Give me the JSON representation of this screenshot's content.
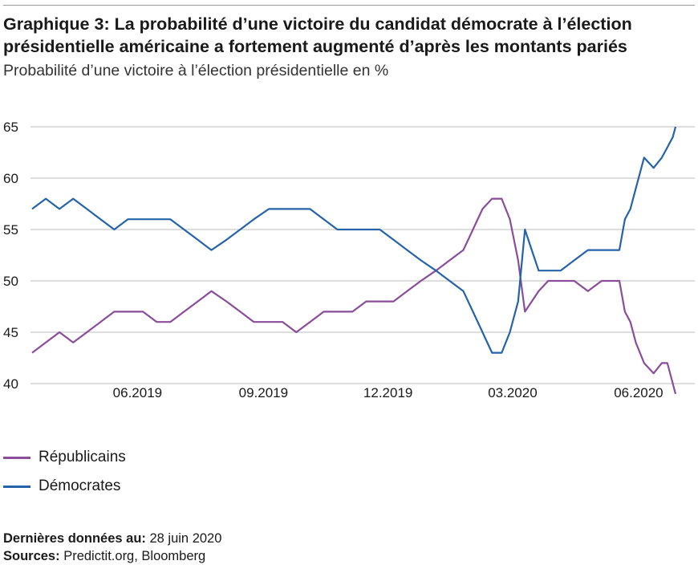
{
  "title": "Graphique 3: La probabilité d’une victoire du candidat démocrate à l’élection présidentielle américaine a fortement augmenté d’après les montants pariés",
  "subtitle": "Probabilité d’une victoire à l’élection présidentielle en %",
  "legend": {
    "republicans": "Républicains",
    "democrats": "Démocrates"
  },
  "footer": {
    "last_data_label": "Dernières données au:",
    "last_data_value": "28 juin 2020",
    "sources_label": "Sources:",
    "sources_value": "Predictit.org, Bloomberg"
  },
  "chart_data": {
    "type": "line",
    "title": "Graphique 3: La probabilité d’une victoire du candidat démocrate à l’élection présidentielle américaine a fortement augmenté d’après les montants pariés",
    "ylabel": "Probabilité d’une victoire à l’élection présidentielle en %",
    "ylim": [
      40,
      65
    ],
    "yticks": [
      40,
      45,
      50,
      55,
      60,
      65
    ],
    "xlim": [
      "2019-03-16",
      "2020-06-28"
    ],
    "xticks": [
      {
        "date": "2019-06-01",
        "label": "06.2019"
      },
      {
        "date": "2019-09-01",
        "label": "09.2019"
      },
      {
        "date": "2019-12-01",
        "label": "12.2019"
      },
      {
        "date": "2020-03-01",
        "label": "03.2020"
      },
      {
        "date": "2020-06-01",
        "label": "06.2020"
      }
    ],
    "grid": true,
    "legend_position": "bottom-left",
    "series": [
      {
        "name": "Républicains",
        "color": "#8a4d9a",
        "points": [
          [
            "2019-03-16",
            43
          ],
          [
            "2019-03-26",
            44
          ],
          [
            "2019-04-05",
            45
          ],
          [
            "2019-04-15",
            44
          ],
          [
            "2019-04-25",
            45
          ],
          [
            "2019-05-05",
            46
          ],
          [
            "2019-05-15",
            47
          ],
          [
            "2019-05-25",
            47
          ],
          [
            "2019-06-05",
            47
          ],
          [
            "2019-06-15",
            46
          ],
          [
            "2019-06-25",
            46
          ],
          [
            "2019-07-05",
            47
          ],
          [
            "2019-07-15",
            48
          ],
          [
            "2019-07-25",
            49
          ],
          [
            "2019-08-05",
            48
          ],
          [
            "2019-08-15",
            47
          ],
          [
            "2019-08-25",
            46
          ],
          [
            "2019-09-05",
            46
          ],
          [
            "2019-09-15",
            46
          ],
          [
            "2019-09-25",
            45
          ],
          [
            "2019-10-05",
            46
          ],
          [
            "2019-10-15",
            47
          ],
          [
            "2019-10-25",
            47
          ],
          [
            "2019-11-05",
            47
          ],
          [
            "2019-11-15",
            48
          ],
          [
            "2019-11-25",
            48
          ],
          [
            "2019-12-05",
            48
          ],
          [
            "2019-12-15",
            49
          ],
          [
            "2019-12-25",
            50
          ],
          [
            "2020-01-05",
            51
          ],
          [
            "2020-01-15",
            52
          ],
          [
            "2020-01-25",
            53
          ],
          [
            "2020-02-01",
            55
          ],
          [
            "2020-02-08",
            57
          ],
          [
            "2020-02-15",
            58
          ],
          [
            "2020-02-22",
            58
          ],
          [
            "2020-02-28",
            56
          ],
          [
            "2020-03-05",
            52
          ],
          [
            "2020-03-10",
            47
          ],
          [
            "2020-03-15",
            48
          ],
          [
            "2020-03-20",
            49
          ],
          [
            "2020-03-27",
            50
          ],
          [
            "2020-04-05",
            50
          ],
          [
            "2020-04-15",
            50
          ],
          [
            "2020-04-25",
            49
          ],
          [
            "2020-05-05",
            50
          ],
          [
            "2020-05-12",
            50
          ],
          [
            "2020-05-18",
            50
          ],
          [
            "2020-05-22",
            47
          ],
          [
            "2020-05-26",
            46
          ],
          [
            "2020-05-30",
            44
          ],
          [
            "2020-06-05",
            42
          ],
          [
            "2020-06-12",
            41
          ],
          [
            "2020-06-18",
            42
          ],
          [
            "2020-06-22",
            42
          ],
          [
            "2020-06-26",
            40
          ],
          [
            "2020-06-28",
            39
          ]
        ]
      },
      {
        "name": "Démocrates",
        "color": "#2563a8",
        "points": [
          [
            "2019-03-16",
            57
          ],
          [
            "2019-03-26",
            58
          ],
          [
            "2019-04-05",
            57
          ],
          [
            "2019-04-15",
            58
          ],
          [
            "2019-04-25",
            57
          ],
          [
            "2019-05-05",
            56
          ],
          [
            "2019-05-15",
            55
          ],
          [
            "2019-05-25",
            56
          ],
          [
            "2019-06-05",
            56
          ],
          [
            "2019-06-15",
            56
          ],
          [
            "2019-06-25",
            56
          ],
          [
            "2019-07-05",
            55
          ],
          [
            "2019-07-15",
            54
          ],
          [
            "2019-07-25",
            53
          ],
          [
            "2019-08-05",
            54
          ],
          [
            "2019-08-15",
            55
          ],
          [
            "2019-08-25",
            56
          ],
          [
            "2019-09-05",
            57
          ],
          [
            "2019-09-15",
            57
          ],
          [
            "2019-09-25",
            57
          ],
          [
            "2019-10-05",
            57
          ],
          [
            "2019-10-15",
            56
          ],
          [
            "2019-10-25",
            55
          ],
          [
            "2019-11-05",
            55
          ],
          [
            "2019-11-15",
            55
          ],
          [
            "2019-11-25",
            55
          ],
          [
            "2019-12-05",
            54
          ],
          [
            "2019-12-15",
            53
          ],
          [
            "2019-12-25",
            52
          ],
          [
            "2020-01-05",
            51
          ],
          [
            "2020-01-15",
            50
          ],
          [
            "2020-01-25",
            49
          ],
          [
            "2020-02-01",
            47
          ],
          [
            "2020-02-08",
            45
          ],
          [
            "2020-02-15",
            43
          ],
          [
            "2020-02-22",
            43
          ],
          [
            "2020-02-28",
            45
          ],
          [
            "2020-03-05",
            48
          ],
          [
            "2020-03-10",
            55
          ],
          [
            "2020-03-15",
            53
          ],
          [
            "2020-03-20",
            51
          ],
          [
            "2020-03-27",
            51
          ],
          [
            "2020-04-05",
            51
          ],
          [
            "2020-04-15",
            52
          ],
          [
            "2020-04-25",
            53
          ],
          [
            "2020-05-05",
            53
          ],
          [
            "2020-05-12",
            53
          ],
          [
            "2020-05-18",
            53
          ],
          [
            "2020-05-22",
            56
          ],
          [
            "2020-05-26",
            57
          ],
          [
            "2020-05-30",
            59
          ],
          [
            "2020-06-05",
            62
          ],
          [
            "2020-06-12",
            61
          ],
          [
            "2020-06-18",
            62
          ],
          [
            "2020-06-22",
            63
          ],
          [
            "2020-06-26",
            64
          ],
          [
            "2020-06-28",
            65
          ]
        ]
      }
    ]
  }
}
